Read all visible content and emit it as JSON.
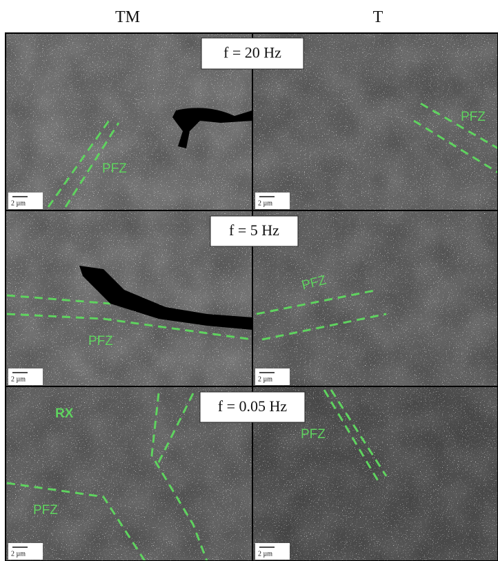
{
  "column_headers": [
    "TM",
    "T"
  ],
  "rows": [
    {
      "label": "f = 20 Hz",
      "panels": [
        {
          "annotations": [
            "PFZ"
          ],
          "scale_bar": "2 µm"
        },
        {
          "annotations": [
            "PFZ"
          ],
          "scale_bar": "2 µm"
        }
      ]
    },
    {
      "label": "f = 5 Hz",
      "panels": [
        {
          "annotations": [
            "PFZ"
          ],
          "scale_bar": "2 µm"
        },
        {
          "annotations": [
            "PFZ"
          ],
          "scale_bar": "2 µm"
        }
      ]
    },
    {
      "label": "f = 0.05 Hz",
      "panels": [
        {
          "annotations": [
            "RX",
            "PFZ"
          ],
          "scale_bar": "2 µm"
        },
        {
          "annotations": [
            "PFZ"
          ],
          "scale_bar": "2 µm"
        }
      ]
    }
  ]
}
